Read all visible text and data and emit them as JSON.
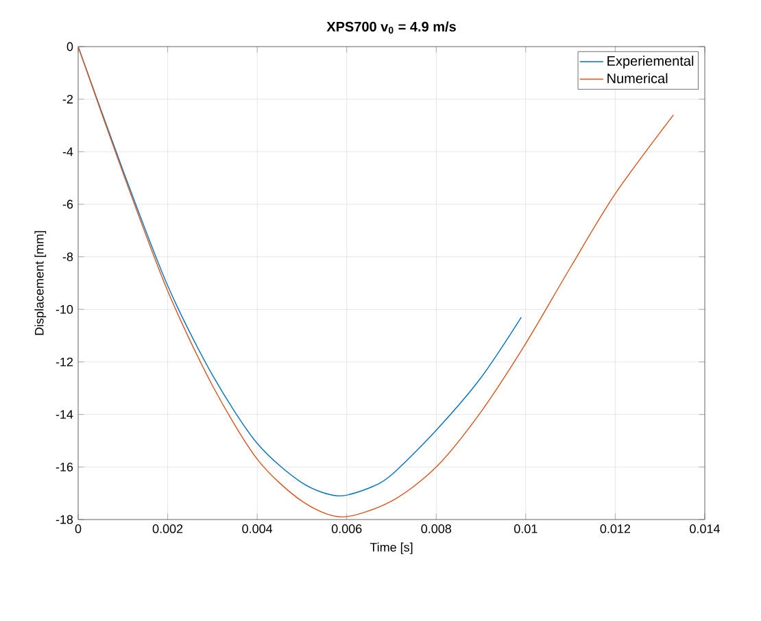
{
  "chart_data": {
    "type": "line",
    "title": "XPS700 v$_{0}$ = 4.9 m/s",
    "xlabel": "Time [s]",
    "ylabel": "Displacement [mm]",
    "xlim": [
      0,
      0.014
    ],
    "xticks": [
      0,
      0.002,
      0.004,
      0.006,
      0.008,
      0.01,
      0.012,
      0.014
    ],
    "ylim": [
      -18,
      0
    ],
    "yticks": [
      -18,
      -16,
      -14,
      -12,
      -10,
      -8,
      -6,
      -4,
      -2,
      0
    ],
    "grid": true,
    "legend": "top right",
    "series": [
      {
        "name": "Experiemental",
        "color": "#0072bd",
        "x": [
          0,
          0.001,
          0.002,
          0.003,
          0.004,
          0.005,
          0.0058,
          0.0065,
          0.007,
          0.008,
          0.009,
          0.0099
        ],
        "values": [
          0,
          -4.7,
          -9.1,
          -12.5,
          -15.1,
          -16.6,
          -17.1,
          -16.8,
          -16.3,
          -14.6,
          -12.6,
          -10.3
        ]
      },
      {
        "name": "Numerical",
        "color": "#d95319",
        "x": [
          0,
          0.001,
          0.002,
          0.003,
          0.004,
          0.005,
          0.0059,
          0.007,
          0.008,
          0.009,
          0.01,
          0.011,
          0.012,
          0.0133
        ],
        "values": [
          0,
          -4.8,
          -9.3,
          -12.9,
          -15.7,
          -17.3,
          -17.9,
          -17.3,
          -16.0,
          -13.9,
          -11.3,
          -8.4,
          -5.6,
          -2.6
        ]
      }
    ]
  }
}
